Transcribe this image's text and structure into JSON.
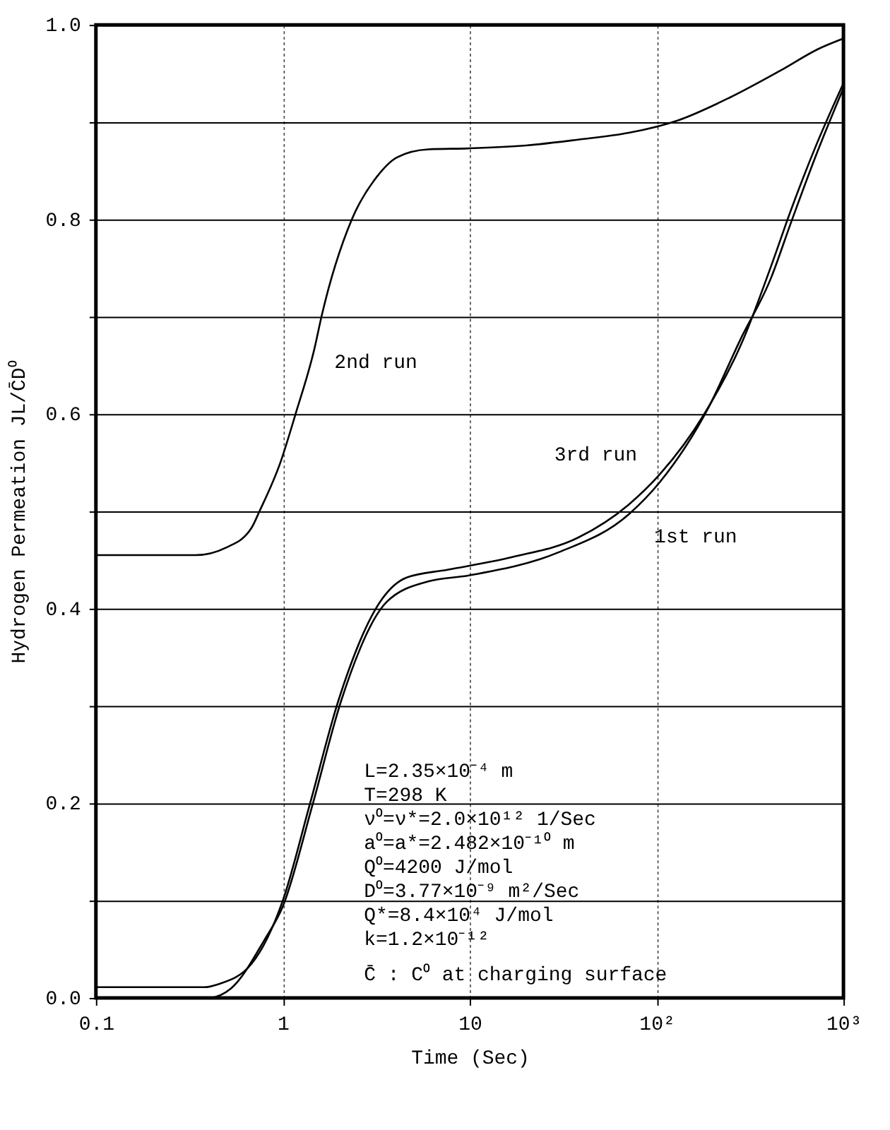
{
  "chart_data": {
    "type": "line",
    "xlabel": "Time (Sec)",
    "ylabel": "Hydrogen Permeation  JL/C̄D⁰",
    "log": "x",
    "xlim": [
      0.1,
      1000
    ],
    "ylim": [
      0,
      1.0
    ],
    "xticks": [
      0.1,
      1,
      10,
      {
        "value": 100,
        "label": "10²"
      },
      {
        "value": 1000,
        "label": "10³"
      }
    ],
    "yticks": [
      {
        "value": 0,
        "label": "0.0"
      },
      {
        "value": 0.1,
        "label": null
      },
      0.2,
      {
        "value": 0.3,
        "label": null
      },
      0.4,
      {
        "value": 0.5,
        "label": null
      },
      0.6,
      {
        "value": 0.7,
        "label": null
      },
      0.8,
      {
        "value": 0.9,
        "label": null
      },
      {
        "value": 1.0,
        "label": "1.0"
      }
    ],
    "grid": true,
    "legend": false,
    "marker": "none",
    "line_style": "solid",
    "series": [
      {
        "name": "2nd run",
        "color": "#000000",
        "x": [
          0.1,
          0.34,
          0.5,
          0.68,
          0.75,
          0.97,
          1.17,
          1.48,
          1.61,
          2.34,
          3.19,
          4.1,
          6.0,
          9.8,
          20,
          38,
          71,
          131,
          245,
          460,
          748,
          1000
        ],
        "values": [
          0.455,
          0.455,
          0.463,
          0.483,
          0.5,
          0.55,
          0.6,
          0.668,
          0.7,
          0.8,
          0.844,
          0.864,
          0.872,
          0.873,
          0.876,
          0.882,
          0.889,
          0.902,
          0.925,
          0.953,
          0.976,
          0.986
        ]
      },
      {
        "name": "3rd run",
        "color": "#000000",
        "x": [
          0.1,
          0.38,
          0.45,
          0.68,
          1.0,
          1.4,
          1.98,
          3.4,
          4.6,
          7.6,
          16.9,
          38,
          71,
          104,
          180,
          290,
          410,
          520,
          710,
          1000
        ],
        "values": [
          0.011,
          0.011,
          0.014,
          0.035,
          0.1,
          0.2,
          0.305,
          0.41,
          0.432,
          0.44,
          0.453,
          0.473,
          0.507,
          0.538,
          0.6,
          0.676,
          0.752,
          0.808,
          0.875,
          0.94
        ]
      },
      {
        "name": "1st run",
        "color": "#000000",
        "x": [
          0.1,
          0.4,
          0.53,
          0.8,
          1.0,
          1.45,
          2.05,
          3.6,
          6.0,
          9.8,
          30,
          71,
          104,
          190,
          280,
          410,
          520,
          710,
          1000
        ],
        "values": [
          0,
          0,
          0.01,
          0.06,
          0.094,
          0.2,
          0.305,
          0.407,
          0.428,
          0.434,
          0.458,
          0.497,
          0.53,
          0.607,
          0.676,
          0.74,
          0.795,
          0.865,
          0.935
        ]
      }
    ],
    "annotations": [
      "L=2.35×10⁻⁴ m",
      "T=298 K",
      "ν⁰=ν*=2.0×10¹² 1/Sec",
      "a⁰=a*=2.482×10⁻¹⁰ m",
      "Q⁰=4200 J/mol",
      "D⁰=3.77×10⁻⁹ m²/Sec",
      "Q*=8.4×10⁴ J/mol",
      "k=1.2×10⁻¹²",
      "C̄ : C⁰ at charging surface"
    ]
  }
}
